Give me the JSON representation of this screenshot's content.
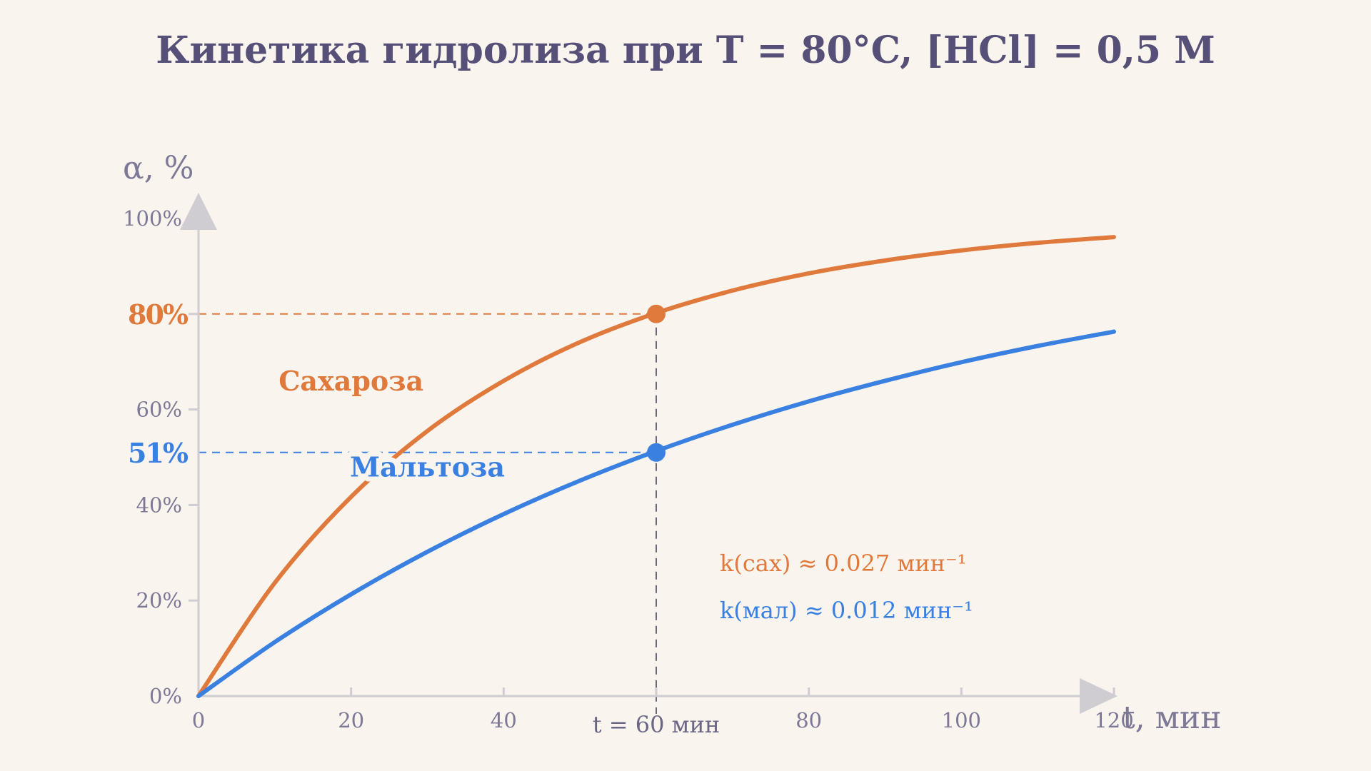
{
  "chart_data": {
    "type": "line",
    "title": "Кинетика гидролиза при T = 80°C,  [HCl] = 0,5 M",
    "xlabel": "t, мин",
    "ylabel": "α, %",
    "xlim": [
      0,
      120
    ],
    "ylim": [
      0,
      100
    ],
    "x_ticks": [
      0,
      20,
      40,
      60,
      80,
      100,
      120
    ],
    "x_tick_labels": [
      "0",
      "20",
      "40",
      "",
      "80",
      "100",
      "120"
    ],
    "y_ticks": [
      0,
      20,
      40,
      60,
      80,
      100
    ],
    "y_tick_labels": [
      "0%",
      "20%",
      "40%",
      "60%",
      "",
      "100%"
    ],
    "grid": false,
    "series": [
      {
        "name": "Сахароза",
        "color": "#e07a3c",
        "x": [
          0,
          10,
          20,
          30,
          40,
          50,
          60,
          70,
          80,
          90,
          100,
          110,
          120
        ],
        "y": [
          0,
          23.7,
          41.7,
          55.5,
          66.0,
          74.1,
          80.2,
          84.9,
          88.5,
          91.2,
          93.3,
          94.9,
          96.1
        ],
        "label_x": 20,
        "label_y": 64
      },
      {
        "name": "Мальтоза",
        "color": "#3a80e0",
        "x": [
          0,
          10,
          20,
          30,
          40,
          50,
          60,
          70,
          80,
          90,
          100,
          110,
          120
        ],
        "y": [
          0,
          11.3,
          21.3,
          30.2,
          38.1,
          45.1,
          51.3,
          56.8,
          61.7,
          66.0,
          69.9,
          73.3,
          76.3
        ],
        "label_x": 30,
        "label_y": 46
      }
    ],
    "annotations": {
      "marker_x": 60,
      "marker_label": "t = 60 мин",
      "points": [
        {
          "series": 0,
          "x": 60,
          "y": 80,
          "label": "80%"
        },
        {
          "series": 1,
          "x": 60,
          "y": 51,
          "label": "51%"
        }
      ],
      "rates": [
        {
          "text": "k(сах)  ≈ 0.027 мин⁻¹",
          "color": "#e07a3c"
        },
        {
          "text": "k(мал)  ≈ 0.012 мин⁻¹",
          "color": "#3a80e0"
        }
      ]
    }
  }
}
